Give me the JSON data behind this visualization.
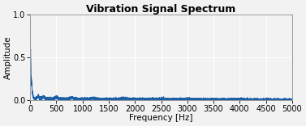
{
  "title": "Vibration Signal Spectrum",
  "xlabel": "Frequency [Hz]",
  "ylabel": "Amplitude",
  "xlim": [
    0,
    5000
  ],
  "ylim": [
    0,
    1
  ],
  "yticks": [
    0,
    0.5,
    1
  ],
  "xticks": [
    0,
    500,
    1000,
    1500,
    2000,
    2500,
    3000,
    3500,
    4000,
    4500,
    5000
  ],
  "line_color": "#1a5fa8",
  "bg_color": "#f2f2f2",
  "grid_color": "#ffffff",
  "title_fontsize": 9,
  "label_fontsize": 7.5,
  "tick_fontsize": 7,
  "decay_fast": 0.06,
  "noise_level": 0.012,
  "noise_decay": 0.0001
}
